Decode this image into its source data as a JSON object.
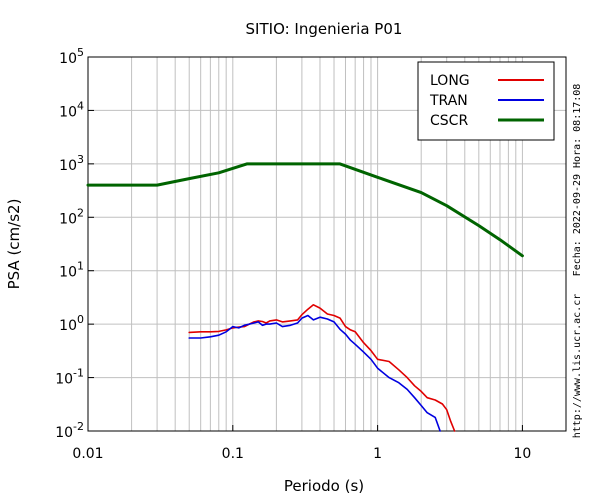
{
  "chart_data": {
    "type": "line",
    "title": "SITIO: Ingenieria P01",
    "xlabel": "Periodo (s)",
    "ylabel": "PSA (cm/s2)",
    "xscale": "log",
    "yscale": "log",
    "xlim": [
      0.01,
      20
    ],
    "ylim": [
      0.01,
      100000
    ],
    "grid": true,
    "legend_position": "top-right",
    "x_tick_labels": [
      {
        "value": 0.01,
        "label": "0.01"
      },
      {
        "value": 0.1,
        "label": "0.1"
      },
      {
        "value": 1,
        "label": "1"
      },
      {
        "value": 10,
        "label": "10"
      }
    ],
    "y_tick_labels": [
      {
        "value": 0.01,
        "base": "10",
        "exp": "-2"
      },
      {
        "value": 0.1,
        "base": "10",
        "exp": "-1"
      },
      {
        "value": 1,
        "base": "10",
        "exp": "0"
      },
      {
        "value": 10,
        "base": "10",
        "exp": "1"
      },
      {
        "value": 100,
        "base": "10",
        "exp": "2"
      },
      {
        "value": 1000,
        "base": "10",
        "exp": "3"
      },
      {
        "value": 10000,
        "base": "10",
        "exp": "4"
      },
      {
        "value": 100000,
        "base": "10",
        "exp": "5"
      }
    ],
    "series": [
      {
        "name": "LONG",
        "color": "#e00000",
        "points": [
          [
            0.05,
            0.7
          ],
          [
            0.06,
            0.72
          ],
          [
            0.07,
            0.72
          ],
          [
            0.08,
            0.73
          ],
          [
            0.09,
            0.78
          ],
          [
            0.1,
            0.85
          ],
          [
            0.11,
            0.88
          ],
          [
            0.12,
            0.9
          ],
          [
            0.13,
            1.0
          ],
          [
            0.14,
            1.1
          ],
          [
            0.15,
            1.15
          ],
          [
            0.16,
            1.12
          ],
          [
            0.17,
            1.05
          ],
          [
            0.18,
            1.15
          ],
          [
            0.2,
            1.2
          ],
          [
            0.22,
            1.1
          ],
          [
            0.25,
            1.15
          ],
          [
            0.28,
            1.2
          ],
          [
            0.3,
            1.5
          ],
          [
            0.33,
            1.9
          ],
          [
            0.36,
            2.3
          ],
          [
            0.4,
            2.0
          ],
          [
            0.45,
            1.55
          ],
          [
            0.5,
            1.45
          ],
          [
            0.55,
            1.3
          ],
          [
            0.6,
            0.9
          ],
          [
            0.65,
            0.78
          ],
          [
            0.7,
            0.72
          ],
          [
            0.8,
            0.45
          ],
          [
            0.9,
            0.32
          ],
          [
            1.0,
            0.22
          ],
          [
            1.2,
            0.2
          ],
          [
            1.4,
            0.14
          ],
          [
            1.6,
            0.1
          ],
          [
            1.8,
            0.07
          ],
          [
            2.0,
            0.055
          ],
          [
            2.2,
            0.042
          ],
          [
            2.5,
            0.038
          ],
          [
            2.8,
            0.032
          ],
          [
            3.0,
            0.025
          ],
          [
            3.2,
            0.015
          ],
          [
            3.4,
            0.01
          ]
        ]
      },
      {
        "name": "TRAN",
        "color": "#0000e0",
        "points": [
          [
            0.05,
            0.55
          ],
          [
            0.06,
            0.55
          ],
          [
            0.07,
            0.58
          ],
          [
            0.08,
            0.62
          ],
          [
            0.09,
            0.72
          ],
          [
            0.1,
            0.9
          ],
          [
            0.11,
            0.85
          ],
          [
            0.12,
            0.95
          ],
          [
            0.13,
            1.0
          ],
          [
            0.14,
            1.05
          ],
          [
            0.15,
            1.1
          ],
          [
            0.16,
            0.95
          ],
          [
            0.17,
            1.0
          ],
          [
            0.18,
            1.0
          ],
          [
            0.2,
            1.05
          ],
          [
            0.22,
            0.9
          ],
          [
            0.25,
            0.95
          ],
          [
            0.28,
            1.05
          ],
          [
            0.3,
            1.3
          ],
          [
            0.33,
            1.45
          ],
          [
            0.36,
            1.2
          ],
          [
            0.4,
            1.35
          ],
          [
            0.45,
            1.25
          ],
          [
            0.5,
            1.1
          ],
          [
            0.55,
            0.8
          ],
          [
            0.6,
            0.65
          ],
          [
            0.65,
            0.5
          ],
          [
            0.7,
            0.42
          ],
          [
            0.8,
            0.3
          ],
          [
            0.9,
            0.22
          ],
          [
            1.0,
            0.15
          ],
          [
            1.2,
            0.1
          ],
          [
            1.4,
            0.08
          ],
          [
            1.6,
            0.06
          ],
          [
            1.8,
            0.042
          ],
          [
            2.0,
            0.03
          ],
          [
            2.2,
            0.022
          ],
          [
            2.5,
            0.018
          ],
          [
            2.7,
            0.01
          ]
        ]
      },
      {
        "name": "CSCR",
        "color": "#006400",
        "points": [
          [
            0.01,
            400
          ],
          [
            0.03,
            400
          ],
          [
            0.05,
            530
          ],
          [
            0.08,
            680
          ],
          [
            0.125,
            1000
          ],
          [
            0.55,
            1000
          ],
          [
            1.0,
            560
          ],
          [
            2.0,
            290
          ],
          [
            3.0,
            165
          ],
          [
            5.0,
            70
          ],
          [
            7.0,
            38
          ],
          [
            10.0,
            19
          ]
        ]
      }
    ]
  },
  "side_notes": {
    "timestamp": "Fecha: 2022-09-29 Hora: 08:17:08",
    "url": "http://www.lis.ucr.ac.cr"
  }
}
